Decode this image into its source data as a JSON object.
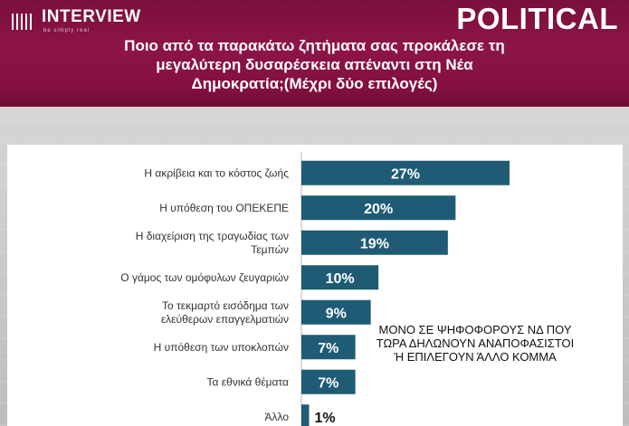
{
  "header": {
    "logo_name": "INTERVIEW",
    "logo_tagline": "be simply real",
    "brand": "POLITICAL",
    "question_lines": [
      "Ποιο από τα παρακάτω ζητήματα σας προκάλεσε τη",
      "μεγαλύτερη δυσαρέσκεια απέναντι στη Νέα",
      "Δημοκρατία;(Μέχρι δύο επιλογές)"
    ]
  },
  "note_lines": [
    "ΜΟΝΟ ΣΕ ΨΗΦΟΦΟΡΟΥΣ ΝΔ ΠΟΥ",
    "ΤΩΡΑ ΔΗΛΩΝΟΥΝ ΑΝΑΠΟΦΑΣΙΣΤΟΙ",
    "Ή ΕΠΙΛΕΓΟΥΝ ΆΛΛΟ ΚΟΜΜΑ"
  ],
  "colors": {
    "header": "#8e1447",
    "bar": "#1f5b75",
    "bar_label": "#ffffff",
    "small_value_label": "#111111"
  },
  "chart_data": {
    "type": "bar",
    "orientation": "horizontal",
    "categories": [
      [
        "Η ακρίβεια και το κόστος ζωής"
      ],
      [
        "Η υπόθεση του ΟΠΕΚΕΠΕ"
      ],
      [
        "Η διαχείριση της τραγωδίας των",
        "Τεμπών"
      ],
      [
        "Ο γάμος των ομόφυλων ζευγαριών"
      ],
      [
        "Το τεκμαρτό εισόδημα των",
        "ελεύθερων επαγγελματιών"
      ],
      [
        "Η υπόθεση των υποκλοπών"
      ],
      [
        "Τα εθνικά θέματα"
      ],
      [
        "Άλλο"
      ]
    ],
    "values": [
      27,
      20,
      19,
      10,
      9,
      7,
      7,
      1
    ],
    "value_labels": [
      "27%",
      "20%",
      "19%",
      "10%",
      "9%",
      "7%",
      "7%",
      "1%"
    ],
    "xlim": [
      0,
      27
    ],
    "grid": false,
    "legend": "none"
  }
}
